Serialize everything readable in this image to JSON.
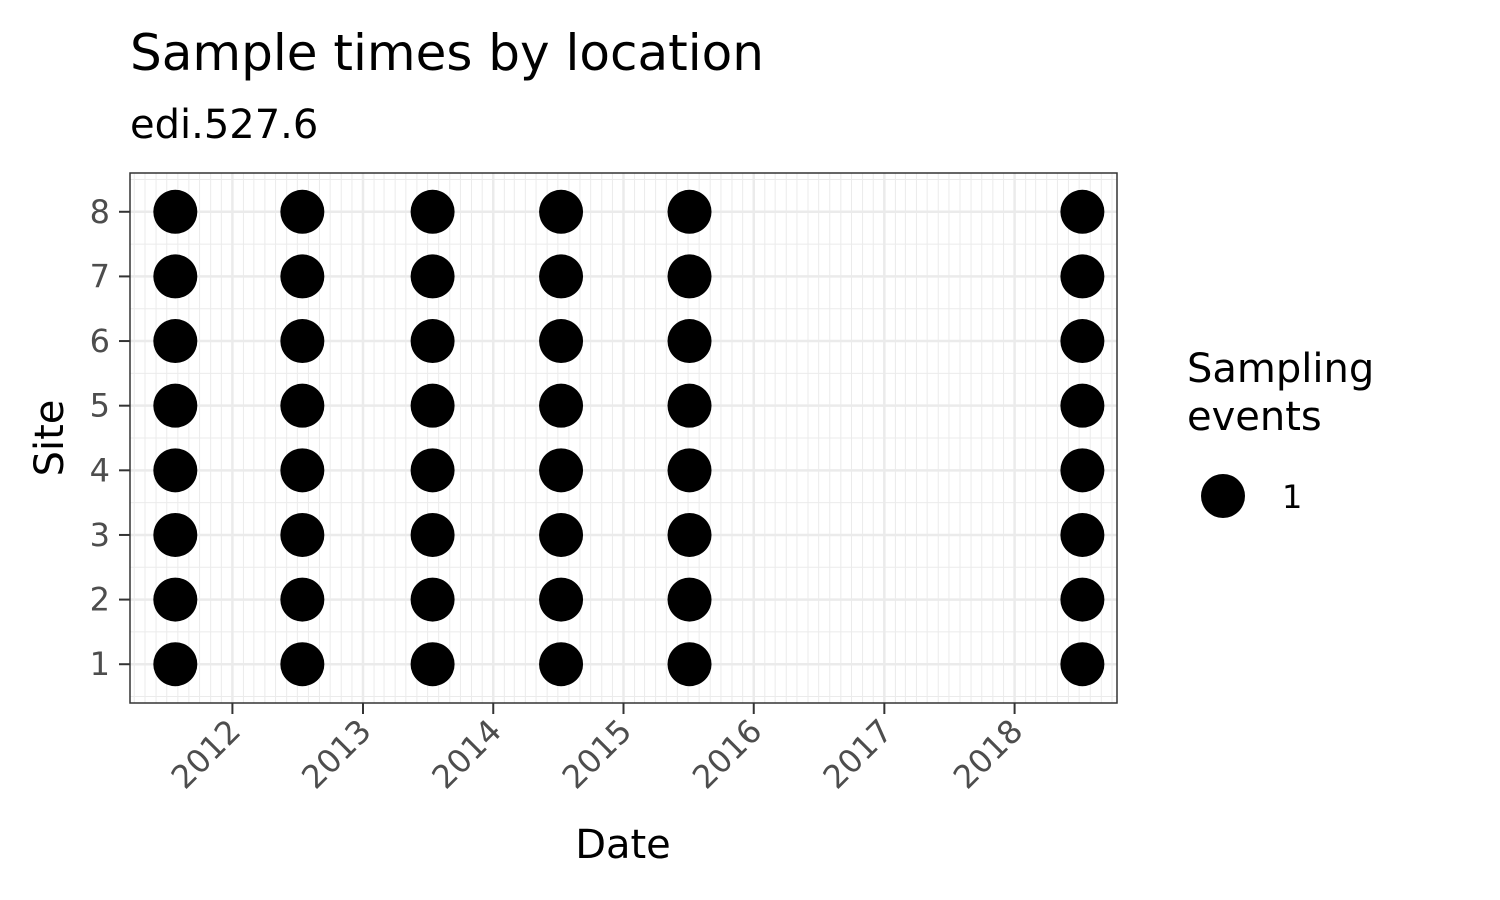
{
  "chart_data": {
    "type": "scatter",
    "title": "Sample times by location",
    "subtitle": "edi.527.6",
    "xlabel": "Date",
    "ylabel": "Site",
    "x_ticks": [
      "2012",
      "2013",
      "2014",
      "2015",
      "2016",
      "2017",
      "2018"
    ],
    "y_ticks": [
      "1",
      "2",
      "3",
      "4",
      "5",
      "6",
      "7",
      "8"
    ],
    "xlim": [
      "2011-03-20",
      "2018-10-15"
    ],
    "ylim": [
      0.4,
      8.6
    ],
    "grid": true,
    "legend": {
      "title_lines": [
        "Sampling",
        "events"
      ],
      "entries": [
        "1"
      ],
      "position": "right"
    },
    "sample_dates": [
      "2011-07-25",
      "2012-07-15",
      "2013-07-15",
      "2014-07-10",
      "2015-07-05",
      "2018-07-10"
    ],
    "sites": [
      1,
      2,
      3,
      4,
      5,
      6,
      7,
      8
    ],
    "points_value": 1,
    "colors": {
      "point": "#000000",
      "panel_border": "#333333",
      "grid": "#ebebeb",
      "tick_label": "#4d4d4d"
    }
  }
}
